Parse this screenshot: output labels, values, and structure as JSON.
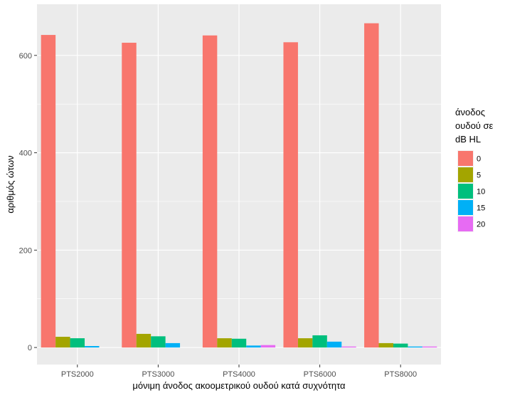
{
  "chart_data": {
    "type": "bar",
    "categories": [
      "PTS2000",
      "PTS3000",
      "PTS4000",
      "PTS6000",
      "PTS8000"
    ],
    "series": [
      {
        "name": "0",
        "color": "#F8766D",
        "values": [
          642,
          626,
          641,
          627,
          666
        ]
      },
      {
        "name": "5",
        "color": "#A3A500",
        "values": [
          22,
          28,
          19,
          19,
          9
        ]
      },
      {
        "name": "10",
        "color": "#00BF7D",
        "values": [
          19,
          23,
          18,
          25,
          8
        ]
      },
      {
        "name": "15",
        "color": "#00B0F6",
        "values": [
          3,
          9,
          4,
          12,
          2
        ]
      },
      {
        "name": "20",
        "color": "#E76BF3",
        "values": [
          0,
          0,
          5,
          2,
          2
        ]
      }
    ],
    "xlabel": "μόνιμη άνοδος ακοομετρικού ουδού κατά συχνότητα",
    "ylabel": "αριθμός ώτων",
    "ylim": [
      -35,
      705
    ],
    "yticks": [
      0,
      200,
      400,
      600
    ],
    "grid": true,
    "legend": {
      "title_lines": [
        "άνοδος",
        "ουδού σε",
        "dB HL"
      ],
      "placement": "right"
    },
    "panel_background": "#EBEBEB"
  }
}
